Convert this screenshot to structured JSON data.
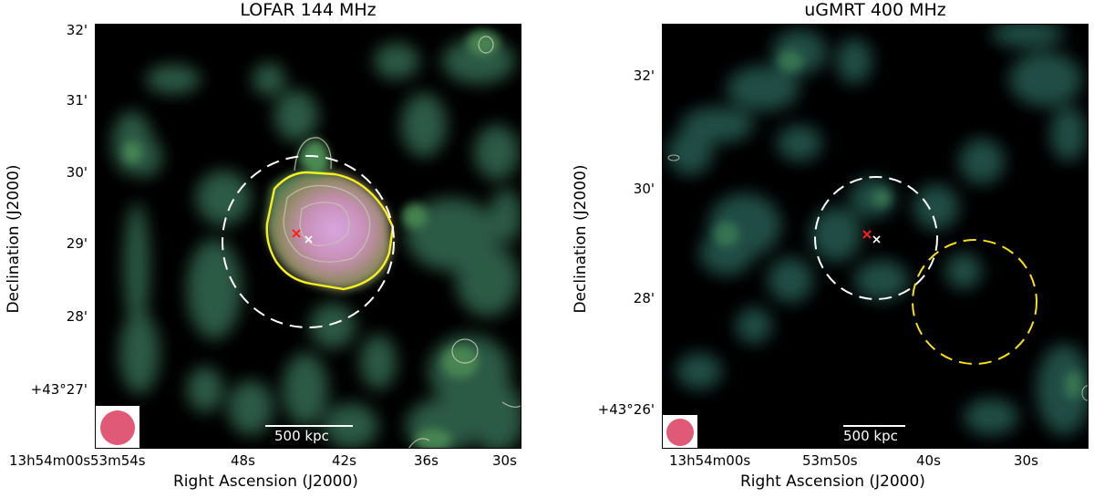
{
  "panels": [
    {
      "id": "lofar",
      "title": "LOFAR 144 MHz",
      "xlabel": "Right Ascension (J2000)",
      "ylabel": "Declination (J2000)",
      "xticks": [
        "13h54m00s",
        "53m54s",
        "48s",
        "42s",
        "36s",
        "30s"
      ],
      "yticks": [
        "32'",
        "31'",
        "30'",
        "29'",
        "28'",
        "+43°27'"
      ],
      "scalebar": "500 kpc"
    },
    {
      "id": "ugmrt",
      "title": "uGMRT 400 MHz",
      "xlabel": "Right Ascension (J2000)",
      "ylabel": "Declination (J2000)",
      "xticks": [
        "13h54m00s",
        "53m50s",
        "40s",
        "30s"
      ],
      "yticks": [
        "32'",
        "30'",
        "28'",
        "+43°26'"
      ],
      "scalebar": "500 kpc"
    }
  ],
  "colors": {
    "background": "#000000",
    "diffuse": "#3f7a52",
    "bright_core": "#c99ad0",
    "contour_grey": "#c8c8b0",
    "contour_yellow": "#f5f021",
    "dashed_circle": "#ffffff",
    "dashed_circle_alt": "#f5e01a",
    "marker_red": "#ff2020",
    "marker_white": "#ffffff",
    "beam": "#e05a78"
  }
}
